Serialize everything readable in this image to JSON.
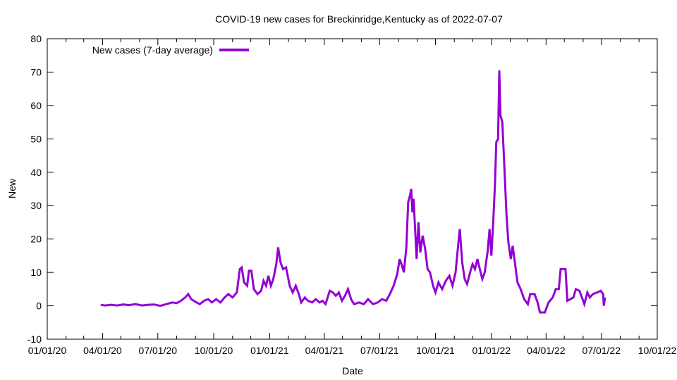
{
  "chart_data": {
    "type": "line",
    "title": "COVID-19 new cases for Breckinridge,Kentucky as of 2022-07-07",
    "xlabel": "Date",
    "ylabel": "New",
    "xlim": [
      "2020-01-01",
      "2022-10-01"
    ],
    "ylim": [
      -10,
      80
    ],
    "x_ticks": [
      "01/01/20",
      "04/01/20",
      "07/01/20",
      "10/01/20",
      "01/01/21",
      "04/01/21",
      "07/01/21",
      "10/01/21",
      "01/01/22",
      "04/01/22",
      "07/01/22",
      "10/01/22"
    ],
    "x_tick_dates": [
      "2020-01-01",
      "2020-04-01",
      "2020-07-01",
      "2020-10-01",
      "2021-01-01",
      "2021-04-01",
      "2021-07-01",
      "2021-10-01",
      "2022-01-01",
      "2022-04-01",
      "2022-07-01",
      "2022-10-01"
    ],
    "y_ticks": [
      -10,
      0,
      10,
      20,
      30,
      40,
      50,
      60,
      70,
      80
    ],
    "grid": false,
    "legend_position": "top-left",
    "series": [
      {
        "name": "New cases (7-day average)",
        "color": "#9400d3",
        "points": [
          [
            "2020-03-29",
            0.3
          ],
          [
            "2020-04-05",
            0.1
          ],
          [
            "2020-04-15",
            0.3
          ],
          [
            "2020-04-25",
            0.1
          ],
          [
            "2020-05-05",
            0.4
          ],
          [
            "2020-05-15",
            0.2
          ],
          [
            "2020-05-25",
            0.5
          ],
          [
            "2020-06-05",
            0.1
          ],
          [
            "2020-06-15",
            0.3
          ],
          [
            "2020-06-25",
            0.4
          ],
          [
            "2020-07-05",
            0.0
          ],
          [
            "2020-07-15",
            0.5
          ],
          [
            "2020-07-25",
            1.0
          ],
          [
            "2020-08-01",
            0.8
          ],
          [
            "2020-08-08",
            1.5
          ],
          [
            "2020-08-15",
            2.5
          ],
          [
            "2020-08-20",
            3.5
          ],
          [
            "2020-08-25",
            2.0
          ],
          [
            "2020-09-01",
            1.2
          ],
          [
            "2020-09-08",
            0.5
          ],
          [
            "2020-09-15",
            1.5
          ],
          [
            "2020-09-22",
            2.0
          ],
          [
            "2020-09-28",
            1.0
          ],
          [
            "2020-10-05",
            2.0
          ],
          [
            "2020-10-12",
            1.0
          ],
          [
            "2020-10-19",
            2.5
          ],
          [
            "2020-10-25",
            3.5
          ],
          [
            "2020-11-01",
            2.5
          ],
          [
            "2020-11-08",
            4.0
          ],
          [
            "2020-11-13",
            11.0
          ],
          [
            "2020-11-16",
            11.5
          ],
          [
            "2020-11-20",
            7.0
          ],
          [
            "2020-11-25",
            6.0
          ],
          [
            "2020-11-28",
            10.5
          ],
          [
            "2020-12-02",
            10.5
          ],
          [
            "2020-12-06",
            5.0
          ],
          [
            "2020-12-12",
            3.5
          ],
          [
            "2020-12-18",
            4.5
          ],
          [
            "2020-12-22",
            7.5
          ],
          [
            "2020-12-26",
            6.0
          ],
          [
            "2020-12-30",
            9.0
          ],
          [
            "2021-01-03",
            6.0
          ],
          [
            "2021-01-07",
            8.0
          ],
          [
            "2021-01-12",
            12.5
          ],
          [
            "2021-01-15",
            17.5
          ],
          [
            "2021-01-19",
            13.0
          ],
          [
            "2021-01-23",
            11.0
          ],
          [
            "2021-01-28",
            11.5
          ],
          [
            "2021-02-03",
            6.0
          ],
          [
            "2021-02-08",
            4.0
          ],
          [
            "2021-02-13",
            6.0
          ],
          [
            "2021-02-18",
            3.5
          ],
          [
            "2021-02-22",
            1.0
          ],
          [
            "2021-02-28",
            2.5
          ],
          [
            "2021-03-05",
            1.5
          ],
          [
            "2021-03-12",
            1.0
          ],
          [
            "2021-03-18",
            2.0
          ],
          [
            "2021-03-24",
            1.0
          ],
          [
            "2021-03-29",
            1.5
          ],
          [
            "2021-04-03",
            0.5
          ],
          [
            "2021-04-10",
            4.5
          ],
          [
            "2021-04-15",
            4.0
          ],
          [
            "2021-04-20",
            3.0
          ],
          [
            "2021-04-25",
            4.0
          ],
          [
            "2021-04-30",
            1.5
          ],
          [
            "2021-05-05",
            3.0
          ],
          [
            "2021-05-10",
            5.0
          ],
          [
            "2021-05-15",
            2.0
          ],
          [
            "2021-05-20",
            0.5
          ],
          [
            "2021-05-28",
            1.0
          ],
          [
            "2021-06-05",
            0.5
          ],
          [
            "2021-06-12",
            2.0
          ],
          [
            "2021-06-20",
            0.5
          ],
          [
            "2021-06-28",
            1.0
          ],
          [
            "2021-07-05",
            2.0
          ],
          [
            "2021-07-12",
            1.5
          ],
          [
            "2021-07-18",
            3.5
          ],
          [
            "2021-07-24",
            6.0
          ],
          [
            "2021-07-30",
            9.5
          ],
          [
            "2021-08-03",
            14.0
          ],
          [
            "2021-08-07",
            12.0
          ],
          [
            "2021-08-10",
            10.0
          ],
          [
            "2021-08-14",
            17.5
          ],
          [
            "2021-08-17",
            31.0
          ],
          [
            "2021-08-20",
            33.0
          ],
          [
            "2021-08-22",
            35.0
          ],
          [
            "2021-08-24",
            28.0
          ],
          [
            "2021-08-26",
            32.0
          ],
          [
            "2021-08-29",
            21.0
          ],
          [
            "2021-08-31",
            14.0
          ],
          [
            "2021-09-03",
            25.0
          ],
          [
            "2021-09-06",
            16.0
          ],
          [
            "2021-09-10",
            21.0
          ],
          [
            "2021-09-14",
            17.0
          ],
          [
            "2021-09-18",
            11.0
          ],
          [
            "2021-09-22",
            10.0
          ],
          [
            "2021-09-27",
            6.0
          ],
          [
            "2021-10-01",
            4.0
          ],
          [
            "2021-10-06",
            7.0
          ],
          [
            "2021-10-12",
            5.0
          ],
          [
            "2021-10-18",
            7.5
          ],
          [
            "2021-10-24",
            9.0
          ],
          [
            "2021-10-29",
            6.0
          ],
          [
            "2021-11-03",
            10.0
          ],
          [
            "2021-11-07",
            17.5
          ],
          [
            "2021-11-10",
            23.0
          ],
          [
            "2021-11-14",
            13.0
          ],
          [
            "2021-11-18",
            8.0
          ],
          [
            "2021-11-22",
            6.5
          ],
          [
            "2021-11-27",
            10.0
          ],
          [
            "2021-12-01",
            12.5
          ],
          [
            "2021-12-05",
            11.0
          ],
          [
            "2021-12-09",
            14.0
          ],
          [
            "2021-12-13",
            11.0
          ],
          [
            "2021-12-17",
            8.0
          ],
          [
            "2021-12-21",
            10.0
          ],
          [
            "2021-12-26",
            16.5
          ],
          [
            "2021-12-29",
            23.0
          ],
          [
            "2022-01-01",
            15.0
          ],
          [
            "2022-01-04",
            25.0
          ],
          [
            "2022-01-07",
            37.0
          ],
          [
            "2022-01-09",
            49.0
          ],
          [
            "2022-01-12",
            50.0
          ],
          [
            "2022-01-14",
            70.5
          ],
          [
            "2022-01-16",
            57.0
          ],
          [
            "2022-01-19",
            55.0
          ],
          [
            "2022-01-22",
            43.0
          ],
          [
            "2022-01-26",
            27.0
          ],
          [
            "2022-01-29",
            19.0
          ],
          [
            "2022-02-02",
            14.0
          ],
          [
            "2022-02-05",
            18.0
          ],
          [
            "2022-02-09",
            12.5
          ],
          [
            "2022-02-13",
            7.0
          ],
          [
            "2022-02-18",
            5.0
          ],
          [
            "2022-02-24",
            2.0
          ],
          [
            "2022-03-02",
            0.5
          ],
          [
            "2022-03-06",
            3.5
          ],
          [
            "2022-03-13",
            3.5
          ],
          [
            "2022-03-18",
            1.0
          ],
          [
            "2022-03-22",
            -2.0
          ],
          [
            "2022-03-30",
            -2.0
          ],
          [
            "2022-04-05",
            1.0
          ],
          [
            "2022-04-12",
            2.5
          ],
          [
            "2022-04-17",
            5.0
          ],
          [
            "2022-04-22",
            5.0
          ],
          [
            "2022-04-25",
            11.0
          ],
          [
            "2022-05-03",
            11.0
          ],
          [
            "2022-05-06",
            1.5
          ],
          [
            "2022-05-16",
            2.5
          ],
          [
            "2022-05-20",
            5.0
          ],
          [
            "2022-05-26",
            4.5
          ],
          [
            "2022-05-30",
            2.5
          ],
          [
            "2022-06-03",
            0.5
          ],
          [
            "2022-06-08",
            4.0
          ],
          [
            "2022-06-12",
            2.5
          ],
          [
            "2022-06-17",
            3.5
          ],
          [
            "2022-06-24",
            4.0
          ],
          [
            "2022-06-30",
            4.5
          ],
          [
            "2022-07-04",
            3.5
          ],
          [
            "2022-07-05",
            0.0
          ],
          [
            "2022-07-07",
            2.5
          ]
        ]
      }
    ]
  }
}
